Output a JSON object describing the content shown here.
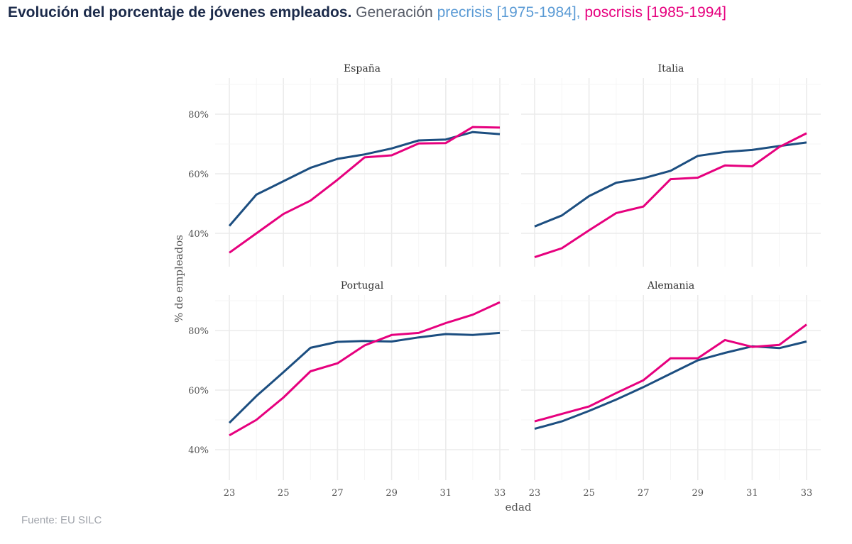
{
  "title": {
    "bold": "Evolución del porcentaje de jóvenes empleados.",
    "lead": "Generación",
    "pre_label": "precrisis [1975-1984],",
    "post_label": "poscrisis [1985-1994]"
  },
  "source": "Fuente: EU SILC",
  "chart_data": {
    "type": "line",
    "xlabel": "edad",
    "ylabel": "% de empleados",
    "xlim": [
      23,
      33
    ],
    "ylim": [
      30,
      92
    ],
    "x_ticks": [
      23,
      25,
      27,
      29,
      31,
      33
    ],
    "y_ticks": [
      40,
      60,
      80
    ],
    "y_tick_labels": [
      "40%",
      "60%",
      "80%"
    ],
    "grid": true,
    "colors": {
      "precrisis": "#1c4e80",
      "poscrisis": "#e6007e"
    },
    "x": [
      23,
      24,
      25,
      26,
      27,
      28,
      29,
      30,
      31,
      32,
      33
    ],
    "panels": [
      {
        "title": "España",
        "series": [
          {
            "key": "precrisis",
            "values": [
              42.5,
              53,
              57.5,
              62,
              65,
              66.5,
              68.5,
              71.2,
              71.5,
              74,
              73.3
            ]
          },
          {
            "key": "poscrisis",
            "values": [
              33.5,
              40,
              46.5,
              51,
              58,
              65.5,
              66.2,
              70.2,
              70.3,
              75.7,
              75.5
            ]
          }
        ]
      },
      {
        "title": "Italia",
        "series": [
          {
            "key": "precrisis",
            "values": [
              42.3,
              46,
              52.5,
              57,
              58.5,
              61,
              66,
              67.3,
              68,
              69.3,
              70.5
            ]
          },
          {
            "key": "poscrisis",
            "values": [
              32,
              35,
              41,
              46.8,
              49,
              58.2,
              58.7,
              62.8,
              62.5,
              69,
              73.6
            ]
          }
        ]
      },
      {
        "title": "Portugal",
        "series": [
          {
            "key": "precrisis",
            "values": [
              49,
              58,
              66,
              74.2,
              76.2,
              76.5,
              76.3,
              77.7,
              78.8,
              78.5,
              79.2
            ]
          },
          {
            "key": "poscrisis",
            "values": [
              44.8,
              50,
              57.5,
              66.3,
              69,
              75,
              78.5,
              79.2,
              82.5,
              85.3,
              89.5
            ]
          }
        ]
      },
      {
        "title": "Alemania",
        "series": [
          {
            "key": "precrisis",
            "values": [
              47,
              49.5,
              53,
              56.8,
              61,
              65.5,
              70,
              72.5,
              74.7,
              74.1,
              76.3
            ]
          },
          {
            "key": "poscrisis",
            "values": [
              49.5,
              52,
              54.5,
              59,
              63.3,
              70.7,
              70.7,
              76.8,
              74.5,
              75.2,
              82
            ]
          }
        ]
      }
    ]
  }
}
